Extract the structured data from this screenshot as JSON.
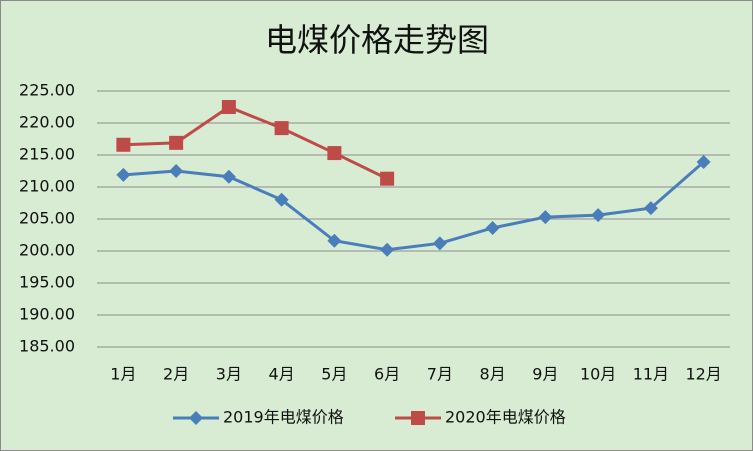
{
  "chart_data": {
    "type": "line",
    "title": "电煤价格走势图",
    "categories": [
      "1月",
      "2月",
      "3月",
      "4月",
      "5月",
      "6月",
      "7月",
      "8月",
      "9月",
      "10月",
      "11月",
      "12月"
    ],
    "series": [
      {
        "name": "2019年电煤价格",
        "color": "#4a7ebb",
        "marker": "diamond",
        "values": [
          211.9,
          212.5,
          211.6,
          208.0,
          201.6,
          200.2,
          201.2,
          203.6,
          205.3,
          205.6,
          206.7,
          213.9
        ]
      },
      {
        "name": "2020年电煤价格",
        "color": "#be4b48",
        "marker": "square",
        "values": [
          216.6,
          216.9,
          222.5,
          219.2,
          215.3,
          211.3,
          null,
          null,
          null,
          null,
          null,
          null
        ]
      }
    ],
    "ylim": [
      185,
      225
    ],
    "yticks": [
      {
        "value": 185,
        "label": "185.00"
      },
      {
        "value": 190,
        "label": "190.00"
      },
      {
        "value": 195,
        "label": "195.00"
      },
      {
        "value": 200,
        "label": "200.00"
      },
      {
        "value": 205,
        "label": "205.00"
      },
      {
        "value": 210,
        "label": "210.00"
      },
      {
        "value": 215,
        "label": "215.00"
      },
      {
        "value": 220,
        "label": "220.00"
      },
      {
        "value": 225,
        "label": "225.00"
      }
    ],
    "grid": true,
    "legend": "bottom"
  }
}
